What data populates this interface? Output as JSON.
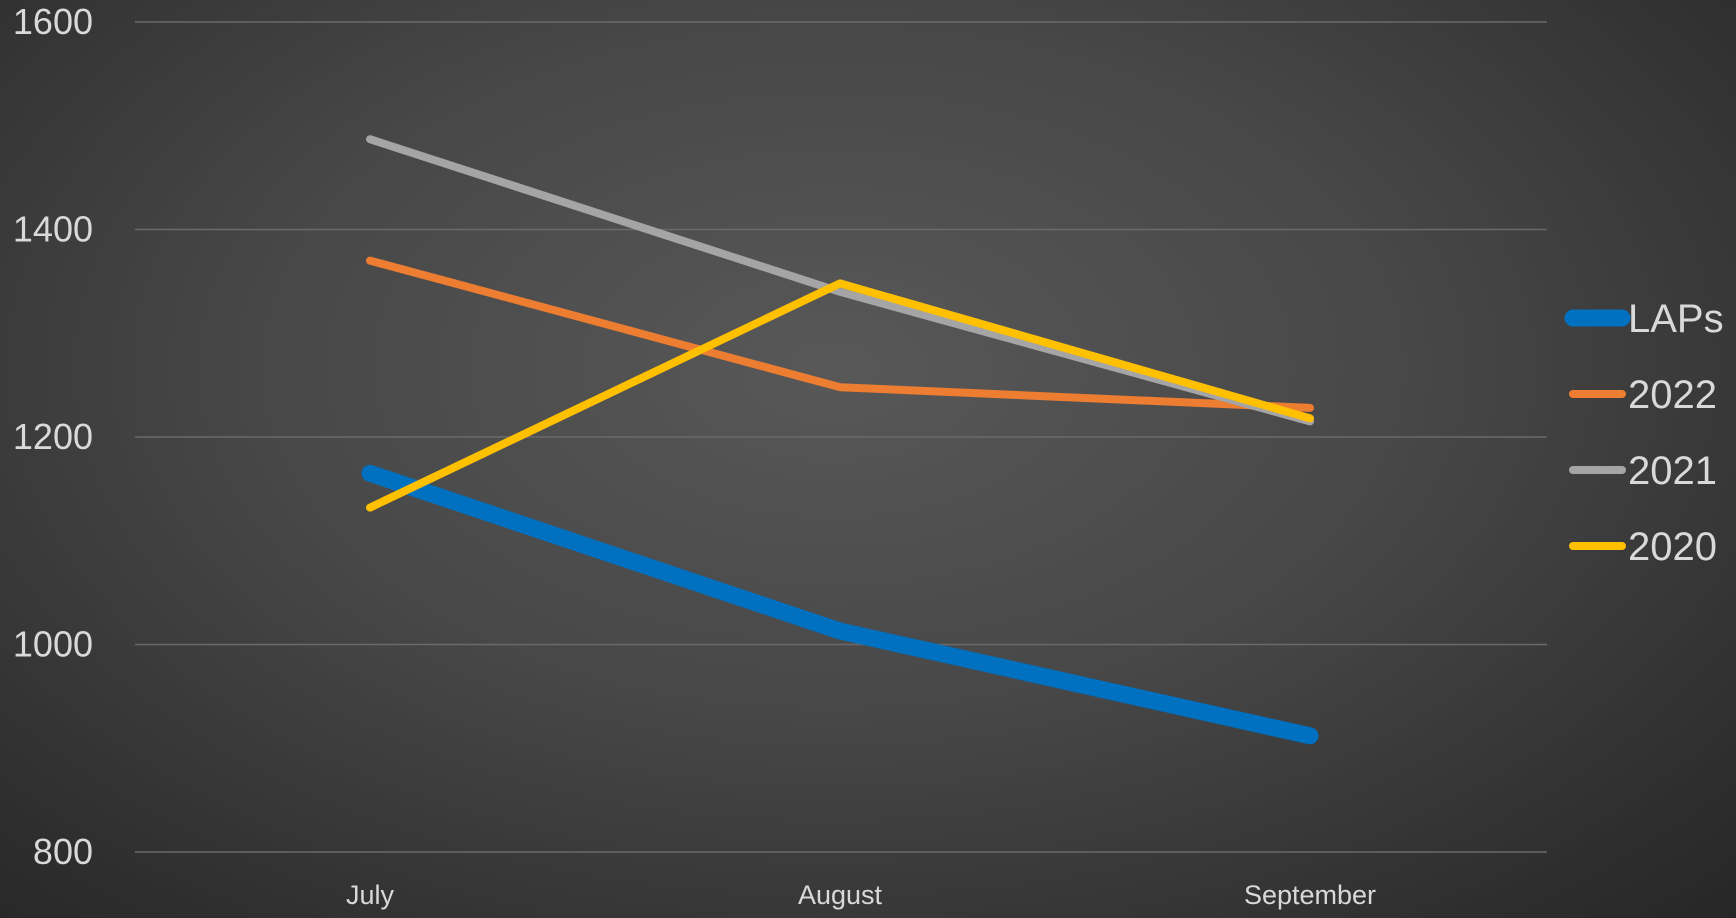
{
  "chart_data": {
    "type": "line",
    "title": "",
    "xlabel": "",
    "ylabel": "",
    "categories": [
      "July",
      "August",
      "September"
    ],
    "ylim": [
      800,
      1600
    ],
    "yticks": [
      800,
      1000,
      1200,
      1400,
      1600
    ],
    "grid": true,
    "legend_position": "right",
    "series": [
      {
        "name": "LAPs",
        "values": [
          1165,
          1013,
          912
        ],
        "color": "#0070c0",
        "emphasis": "thick"
      },
      {
        "name": "2022",
        "values": [
          1370,
          1248,
          1228
        ],
        "color": "#ed7d31"
      },
      {
        "name": "2021",
        "values": [
          1487,
          1340,
          1215
        ],
        "color": "#a5a5a5"
      },
      {
        "name": "2020",
        "values": [
          1132,
          1348,
          1218
        ],
        "color": "#ffc000"
      }
    ]
  },
  "colors": {
    "gridline": "#6a6a6a",
    "text": "#d9d9d9"
  }
}
